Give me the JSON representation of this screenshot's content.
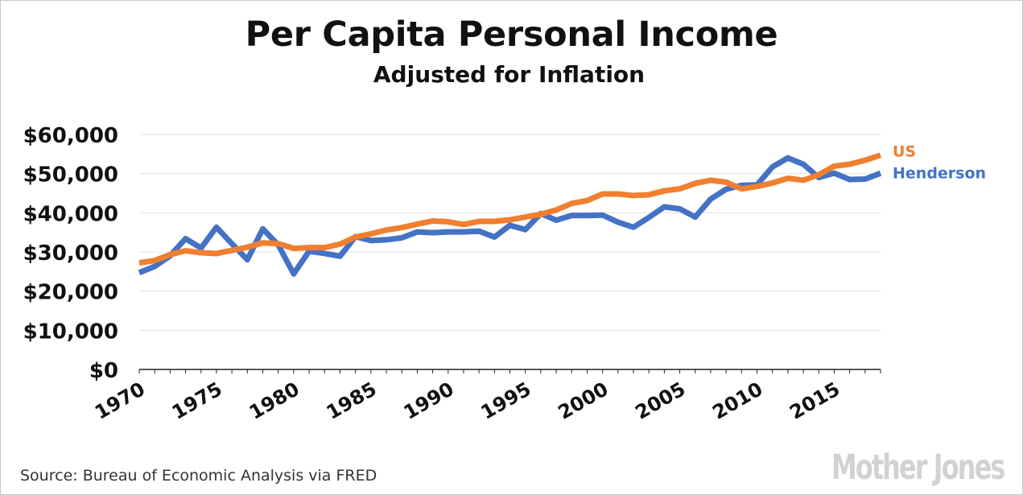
{
  "header": {
    "title": "Per Capita Personal Income",
    "subtitle": "Adjusted for Inflation"
  },
  "footer": {
    "source": "Source: Bureau of Economic Analysis via FRED",
    "logo": "Mother Jones"
  },
  "colors": {
    "us": "#f07f2f",
    "henderson": "#4472c4",
    "grid": "#e3e3e3",
    "axis": "#222222"
  },
  "chart_data": {
    "type": "line",
    "title": "Per Capita Personal Income",
    "subtitle": "Adjusted for Inflation",
    "xlabel": "",
    "ylabel": "",
    "xlim": [
      1970,
      2018
    ],
    "ylim": [
      0,
      60000
    ],
    "x_ticks": [
      1970,
      1975,
      1980,
      1985,
      1990,
      1995,
      2000,
      2005,
      2010,
      2015
    ],
    "x_tick_labels": [
      "1970",
      "1975",
      "1980",
      "1985",
      "1990",
      "1995",
      "2000",
      "2005",
      "2010",
      "2015"
    ],
    "y_ticks": [
      0,
      10000,
      20000,
      30000,
      40000,
      50000,
      60000
    ],
    "y_tick_labels": [
      "$0",
      "$10,000",
      "$20,000",
      "$30,000",
      "$40,000",
      "$50,000",
      "$60,000"
    ],
    "grid": "horizontal",
    "legend": "series labels at line ends (right)",
    "x": [
      1970,
      1971,
      1972,
      1973,
      1974,
      1975,
      1976,
      1977,
      1978,
      1979,
      1980,
      1981,
      1982,
      1983,
      1984,
      1985,
      1986,
      1987,
      1988,
      1989,
      1990,
      1991,
      1992,
      1993,
      1994,
      1995,
      1996,
      1997,
      1998,
      1999,
      2000,
      2001,
      2002,
      2003,
      2004,
      2005,
      2006,
      2007,
      2008,
      2009,
      2010,
      2011,
      2012,
      2013,
      2014,
      2015,
      2016,
      2017,
      2018
    ],
    "series": [
      {
        "name": "US",
        "color": "#f07f2f",
        "values": [
          27200,
          27800,
          29300,
          30300,
          29800,
          29600,
          30400,
          31200,
          32300,
          32100,
          30900,
          31100,
          31100,
          32000,
          33800,
          34600,
          35600,
          36200,
          37100,
          37900,
          37700,
          37000,
          37800,
          37800,
          38200,
          38900,
          39600,
          40700,
          42400,
          43100,
          44800,
          44800,
          44400,
          44600,
          45600,
          46100,
          47500,
          48300,
          47800,
          46100,
          46700,
          47600,
          48800,
          48300,
          49700,
          51900,
          52400,
          53400,
          54700
        ]
      },
      {
        "name": "Henderson",
        "color": "#4472c4",
        "values": [
          24700,
          26300,
          29000,
          33400,
          31000,
          36300,
          32100,
          28000,
          35900,
          31800,
          24400,
          30200,
          29600,
          28900,
          33900,
          32900,
          33100,
          33600,
          35100,
          34900,
          35100,
          35100,
          35300,
          33800,
          36800,
          35700,
          39800,
          38100,
          39300,
          39300,
          39400,
          37600,
          36300,
          38800,
          41500,
          41000,
          38900,
          43500,
          46000,
          47000,
          47100,
          51700,
          54000,
          52400,
          49000,
          50100,
          48500,
          48600,
          50100
        ]
      }
    ]
  }
}
